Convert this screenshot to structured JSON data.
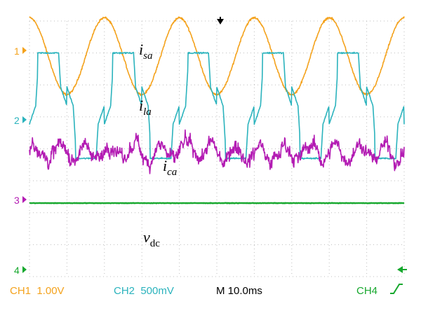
{
  "chart_data": {
    "type": "line",
    "time_per_division": "10.0ms",
    "divisions": {
      "x": 10,
      "y": 8
    },
    "x": {
      "start_ms": 0,
      "end_ms": 100
    },
    "series": [
      {
        "id": "isa",
        "label": {
          "main": "i",
          "sub": "sa"
        },
        "channel": "1",
        "color": "#f4a21c",
        "waveform": "sine",
        "frequency_hz": 50,
        "amplitude_div": 1.2,
        "offset_div": 2.9,
        "noise_div": 0.05,
        "phase_deg": 90
      },
      {
        "id": "ila",
        "label": {
          "main": "i",
          "sub": "la"
        },
        "channel": "2",
        "color": "#2bb3bd",
        "waveform": "six-step",
        "frequency_hz": 50,
        "amplitude_div": 1.65,
        "offset_div": 1.35,
        "noise_div": 0.03,
        "phase_deg": 0
      },
      {
        "id": "ica",
        "label": {
          "main": "i",
          "sub": "ca"
        },
        "channel": "3",
        "color": "#b31cb3",
        "waveform": "noise",
        "amplitude_div": 0.55,
        "offset_div": -0.1,
        "noise_div": 0.25
      },
      {
        "id": "vdc",
        "label": {
          "main": "v",
          "sub": "dc"
        },
        "channel": "4",
        "color": "#17a82e",
        "waveform": "dc",
        "offset_div": -1.7,
        "noise_div": 0.01
      }
    ],
    "channel_markers": [
      "1",
      "2",
      "3",
      "4"
    ],
    "grid": true
  },
  "status_bar": {
    "ch1": "CH1  1.00V",
    "ch2": "CH2  500mV",
    "timebase": "M 10.0ms",
    "ch4": "CH4"
  },
  "colors": {
    "grid": "#bdbdbd",
    "ch1": "#f4a21c",
    "ch2": "#2bb3bd",
    "ch3": "#b31cb3",
    "ch4": "#17a82e"
  }
}
